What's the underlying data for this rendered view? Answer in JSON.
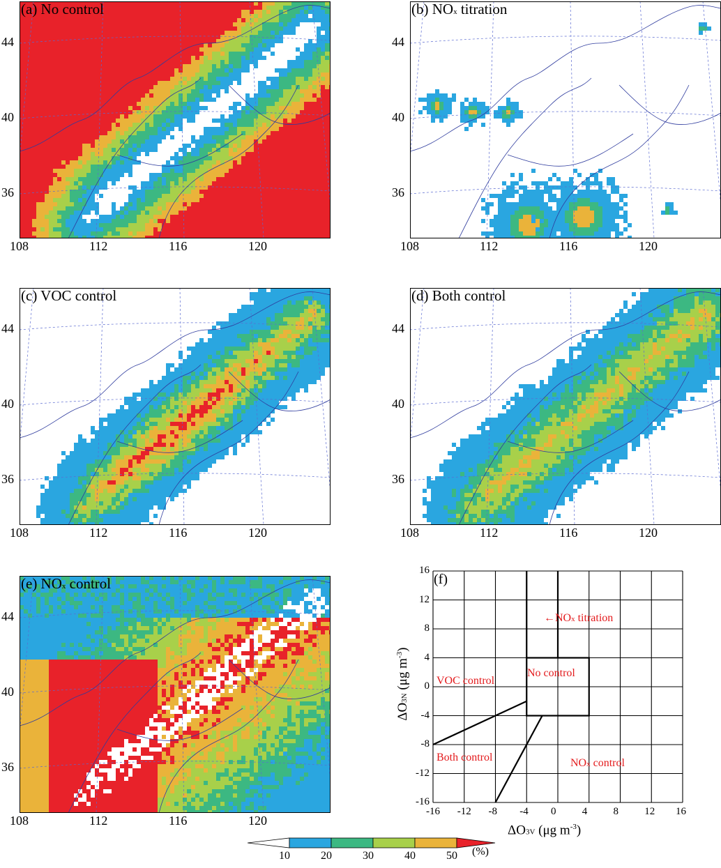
{
  "panels": [
    {
      "id": "a",
      "title": "(a) No control",
      "title_main": "(a) No control",
      "title_sub": "",
      "title_tail": ""
    },
    {
      "id": "b",
      "title": "(b) NOx titration",
      "title_main": "(b) NO",
      "title_sub": "x",
      "title_tail": " titration"
    },
    {
      "id": "c",
      "title": "(c) VOC  control",
      "title_main": "(c) VOC  control",
      "title_sub": "",
      "title_tail": ""
    },
    {
      "id": "d",
      "title": "(d) Both control",
      "title_main": "(d) Both control",
      "title_sub": "",
      "title_tail": ""
    },
    {
      "id": "e",
      "title": "(e) NOx control",
      "title_main": "(e) NO",
      "title_sub": "x",
      "title_tail": " control"
    }
  ],
  "map_axes": {
    "lat_ticks": [
      "44",
      "40",
      "36"
    ],
    "lon_ticks": [
      "108",
      "112",
      "116",
      "120"
    ]
  },
  "colorbar": {
    "colors": [
      "#ffffff",
      "#2aa6e0",
      "#3cb882",
      "#a8d04a",
      "#eab33a",
      "#e8222a"
    ],
    "labels": [
      "10",
      "20",
      "30",
      "40",
      "50"
    ],
    "unit": "(%)"
  },
  "panel_f": {
    "label": "(f)",
    "x_ticks": [
      "-16",
      "-12",
      "-8",
      "-4",
      "0",
      "4",
      "8",
      "12",
      "16"
    ],
    "y_ticks": [
      "16",
      "12",
      "8",
      "4",
      "0",
      "-4",
      "-8",
      "-12",
      "-16"
    ],
    "x_label_main": "ΔO",
    "x_label_sub": "3V",
    "x_label_tail": " (μg m",
    "x_label_sup": "-3",
    "x_label_end": ")",
    "y_label_main": "ΔO",
    "y_label_sub": "3N",
    "y_label_tail": " (μg m",
    "y_label_sup": "-3",
    "y_label_end": ")",
    "regions": {
      "no_control": "No control",
      "voc_control": "VOC  control",
      "both_control": "Both control",
      "nox_control_main": "NO",
      "nox_control_sub": "x",
      "nox_control_tail": " control",
      "nox_titration_arrow": "←",
      "nox_titration_main": "NO",
      "nox_titration_sub": "x",
      "nox_titration_tail": " titration"
    }
  }
}
